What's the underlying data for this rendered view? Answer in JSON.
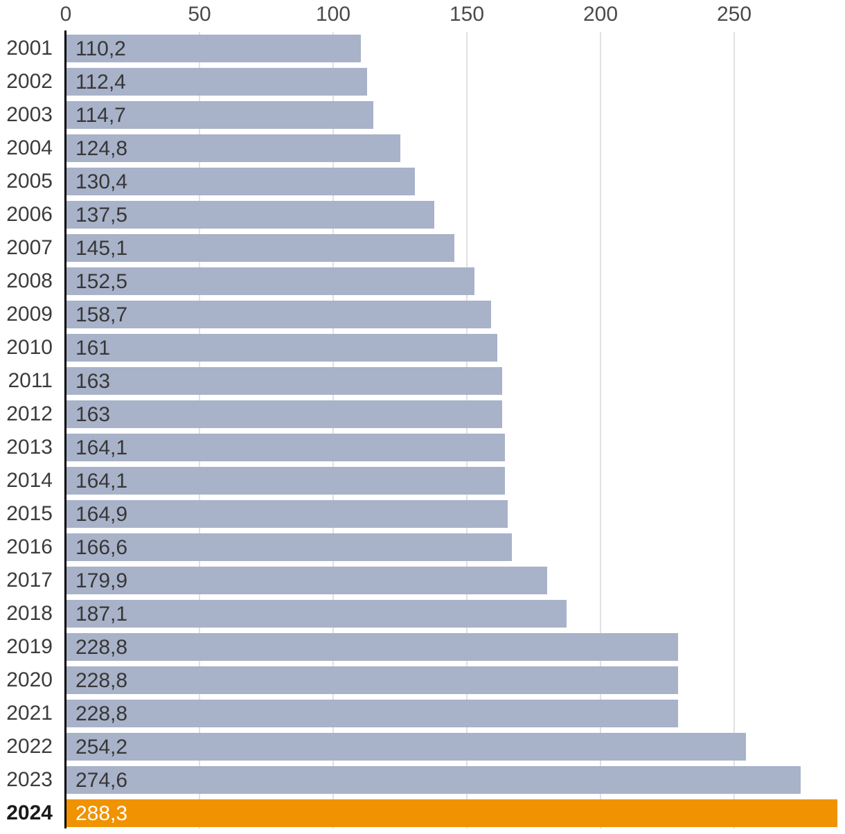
{
  "chart_data": {
    "type": "bar",
    "orientation": "horizontal",
    "categories": [
      "2001",
      "2002",
      "2003",
      "2004",
      "2005",
      "2006",
      "2007",
      "2008",
      "2009",
      "2010",
      "2011",
      "2012",
      "2013",
      "2014",
      "2015",
      "2016",
      "2017",
      "2018",
      "2019",
      "2020",
      "2021",
      "2022",
      "2023",
      "2024"
    ],
    "values": [
      110.2,
      112.4,
      114.7,
      124.8,
      130.4,
      137.5,
      145.1,
      152.5,
      158.7,
      161,
      163,
      163,
      164.1,
      164.1,
      164.9,
      166.6,
      179.9,
      187.1,
      228.8,
      228.8,
      228.8,
      254.2,
      274.6,
      288.3
    ],
    "value_labels": [
      "110,2",
      "112,4",
      "114,7",
      "124,8",
      "130,4",
      "137,5",
      "145,1",
      "152,5",
      "158,7",
      "161",
      "163",
      "163",
      "164,1",
      "164,1",
      "164,9",
      "166,6",
      "179,9",
      "187,1",
      "228,8",
      "228,8",
      "228,8",
      "254,2",
      "274,6",
      "288,3"
    ],
    "x_ticks": [
      0,
      50,
      100,
      150,
      200,
      250
    ],
    "x_tick_labels": [
      "0",
      "50",
      "100",
      "150",
      "200",
      "250"
    ],
    "xlim": [
      0,
      291.5
    ],
    "highlight_category": "2024",
    "grid": "vertical",
    "legend": "none",
    "title": "",
    "xlabel": "",
    "ylabel": "",
    "colors": {
      "bar": "#a8b2c9",
      "highlight_bar": "#f09300",
      "gridline": "#e1e1e1",
      "axis_line": "#000000",
      "tick_label": "#4a4a4a",
      "category_label": "#3c3c3c",
      "highlight_category_label": "#1a1a1a",
      "value_label": "#373737",
      "highlight_value_label": "#ffffff",
      "background": "#ffffff"
    }
  }
}
